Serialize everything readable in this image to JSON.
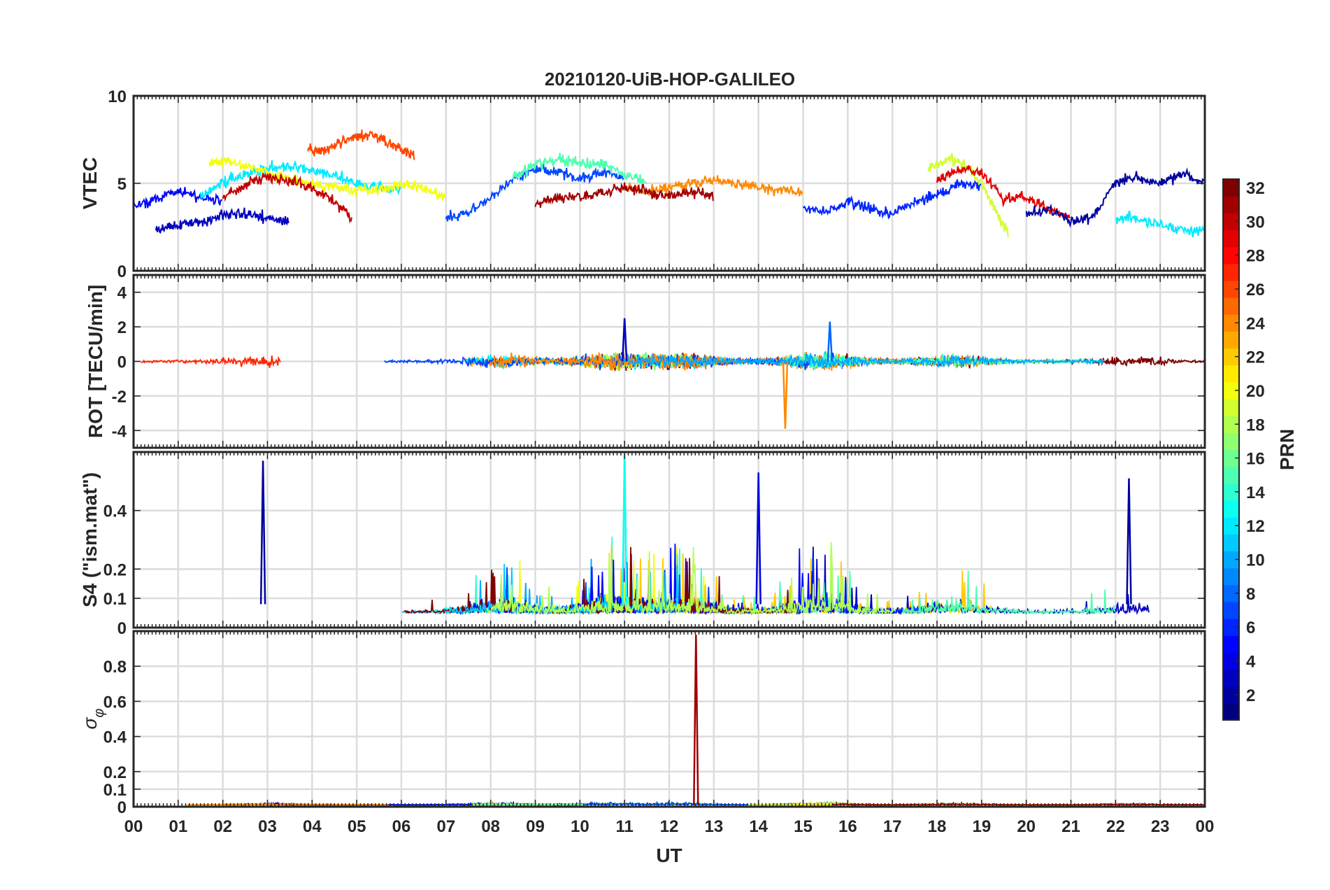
{
  "title": "20210120-UiB-HOP-GALILEO",
  "chart_data": [
    {
      "type": "line",
      "panel": "VTEC",
      "ylabel": "VTEC",
      "ylim": [
        0,
        10
      ],
      "yticks": [
        0,
        5,
        10
      ],
      "approx_series": [
        {
          "prn": 5,
          "x": [
            0.0,
            0.5,
            1.0,
            1.5,
            2.0
          ],
          "y": [
            3.6,
            4.1,
            4.6,
            4.2,
            4.0
          ]
        },
        {
          "prn": 12,
          "x": [
            1.5,
            2.0,
            2.5,
            3.0,
            3.5,
            4.0,
            4.5,
            5.0,
            5.5,
            6.0
          ],
          "y": [
            4.2,
            5.0,
            5.6,
            5.9,
            5.9,
            5.7,
            5.5,
            5.0,
            4.8,
            4.6
          ]
        },
        {
          "prn": 20,
          "x": [
            1.7,
            2.0,
            2.5,
            3.0,
            3.5,
            4.0,
            4.5,
            5.0,
            5.5,
            6.0,
            6.5,
            7.0
          ],
          "y": [
            6.2,
            6.3,
            6.0,
            5.6,
            5.2,
            5.0,
            4.8,
            4.6,
            4.6,
            5.0,
            4.7,
            4.1
          ]
        },
        {
          "prn": 26,
          "x": [
            3.9,
            4.2,
            4.6,
            5.0,
            5.2,
            5.6,
            6.0,
            6.3
          ],
          "y": [
            7.0,
            6.8,
            7.3,
            7.7,
            7.8,
            7.5,
            6.9,
            6.6
          ]
        },
        {
          "prn": 30,
          "x": [
            2.0,
            2.5,
            3.0,
            3.5,
            4.0,
            4.5,
            4.9
          ],
          "y": [
            4.2,
            4.9,
            5.4,
            5.1,
            4.7,
            4.0,
            3.0
          ]
        },
        {
          "prn": 3,
          "x": [
            0.5,
            1.0,
            1.5,
            2.0,
            2.5,
            3.0,
            3.5
          ],
          "y": [
            2.3,
            2.6,
            2.8,
            3.1,
            3.3,
            3.0,
            2.8
          ]
        },
        {
          "prn": 7,
          "x": [
            7.0,
            7.5,
            8.0,
            8.5,
            9.0,
            9.5,
            10.0,
            10.5,
            11.0
          ],
          "y": [
            3.0,
            3.4,
            4.2,
            5.2,
            5.8,
            5.7,
            5.3,
            5.6,
            5.4
          ]
        },
        {
          "prn": 15,
          "x": [
            8.5,
            9.0,
            9.5,
            10.0,
            10.5,
            11.0,
            11.5
          ],
          "y": [
            5.3,
            6.1,
            6.4,
            6.2,
            6.1,
            5.5,
            5.0
          ]
        },
        {
          "prn": 24,
          "x": [
            11.0,
            11.5,
            12.0,
            12.5,
            13.0,
            13.5,
            14.0,
            14.5,
            15.0
          ],
          "y": [
            4.8,
            4.5,
            4.7,
            5.0,
            5.2,
            5.0,
            4.8,
            4.6,
            4.5
          ]
        },
        {
          "prn": 31,
          "x": [
            9.0,
            9.5,
            10.0,
            10.5,
            11.0,
            11.5,
            12.0,
            12.5,
            13.0
          ],
          "y": [
            3.8,
            4.2,
            4.2,
            4.5,
            4.8,
            4.6,
            4.3,
            4.5,
            4.3
          ]
        },
        {
          "prn": 6,
          "x": [
            15.0,
            15.5,
            16.0,
            16.5,
            17.0,
            17.5,
            18.0,
            18.5,
            19.0
          ],
          "y": [
            3.6,
            3.4,
            3.9,
            3.6,
            3.3,
            3.9,
            4.3,
            5.0,
            4.9
          ]
        },
        {
          "prn": 19,
          "x": [
            17.8,
            18.2,
            18.6,
            19.0,
            19.4,
            19.6
          ],
          "y": [
            5.8,
            6.4,
            6.1,
            5.0,
            3.0,
            2.2
          ]
        },
        {
          "prn": 29,
          "x": [
            18.0,
            18.5,
            19.0,
            19.5,
            20.0,
            20.5,
            21.0
          ],
          "y": [
            5.2,
            5.8,
            5.6,
            4.1,
            4.2,
            3.5,
            3.0
          ]
        },
        {
          "prn": 2,
          "x": [
            20.0,
            20.5,
            21.0,
            21.5,
            22.0,
            22.5,
            23.0,
            23.5,
            24.0
          ],
          "y": [
            3.2,
            3.5,
            2.8,
            3.1,
            5.1,
            5.4,
            5.0,
            5.6,
            5.0
          ]
        },
        {
          "prn": 12,
          "x": [
            22.0,
            22.5,
            23.0,
            23.5,
            24.0
          ],
          "y": [
            3.0,
            3.0,
            2.6,
            2.3,
            2.3
          ]
        }
      ]
    },
    {
      "type": "line",
      "panel": "ROT",
      "ylabel": "ROT [TECU/min]",
      "ylim": [
        -5,
        5
      ],
      "yticks": [
        -4,
        -2,
        0,
        2,
        4
      ],
      "notable_points": [
        {
          "x": 14.6,
          "y": -3.9,
          "prn": 24
        },
        {
          "x": 11.0,
          "y": 2.5,
          "prn": 3
        },
        {
          "x": 15.6,
          "y": 2.3,
          "prn": 8
        }
      ]
    },
    {
      "type": "line",
      "panel": "S4",
      "ylabel": "S4 (\"ism.mat\")",
      "ylim": [
        0,
        0.6
      ],
      "yticks": [
        0,
        0.1,
        0.2,
        0.4
      ],
      "notable_points": [
        {
          "x": 2.9,
          "y": 0.57,
          "prn": 2
        },
        {
          "x": 11.0,
          "y": 0.6,
          "prn": 13
        },
        {
          "x": 14.0,
          "y": 0.53,
          "prn": 4
        },
        {
          "x": 22.3,
          "y": 0.51,
          "prn": 2
        }
      ]
    },
    {
      "type": "line",
      "panel": "sigma_phi",
      "ylabel": "σ",
      "ylabel_sub": "φ",
      "ylim": [
        0,
        1
      ],
      "yticks": [
        0,
        0.1,
        0.2,
        0.4,
        0.6,
        0.8
      ],
      "notable_points": [
        {
          "x": 12.6,
          "y": 0.98,
          "prn": 31
        }
      ]
    }
  ],
  "x_axis": {
    "xlabel": "UT",
    "ticks": [
      "00",
      "01",
      "02",
      "03",
      "04",
      "05",
      "06",
      "07",
      "08",
      "09",
      "10",
      "11",
      "12",
      "13",
      "14",
      "15",
      "16",
      "17",
      "18",
      "19",
      "20",
      "21",
      "22",
      "23",
      "00"
    ],
    "range_hours": [
      0,
      24
    ]
  },
  "colorbar": {
    "label": "PRN",
    "range": [
      1,
      32
    ],
    "ticks": [
      2,
      4,
      6,
      8,
      10,
      12,
      14,
      16,
      18,
      20,
      22,
      24,
      26,
      28,
      30,
      32
    ],
    "colormap": "jet"
  }
}
